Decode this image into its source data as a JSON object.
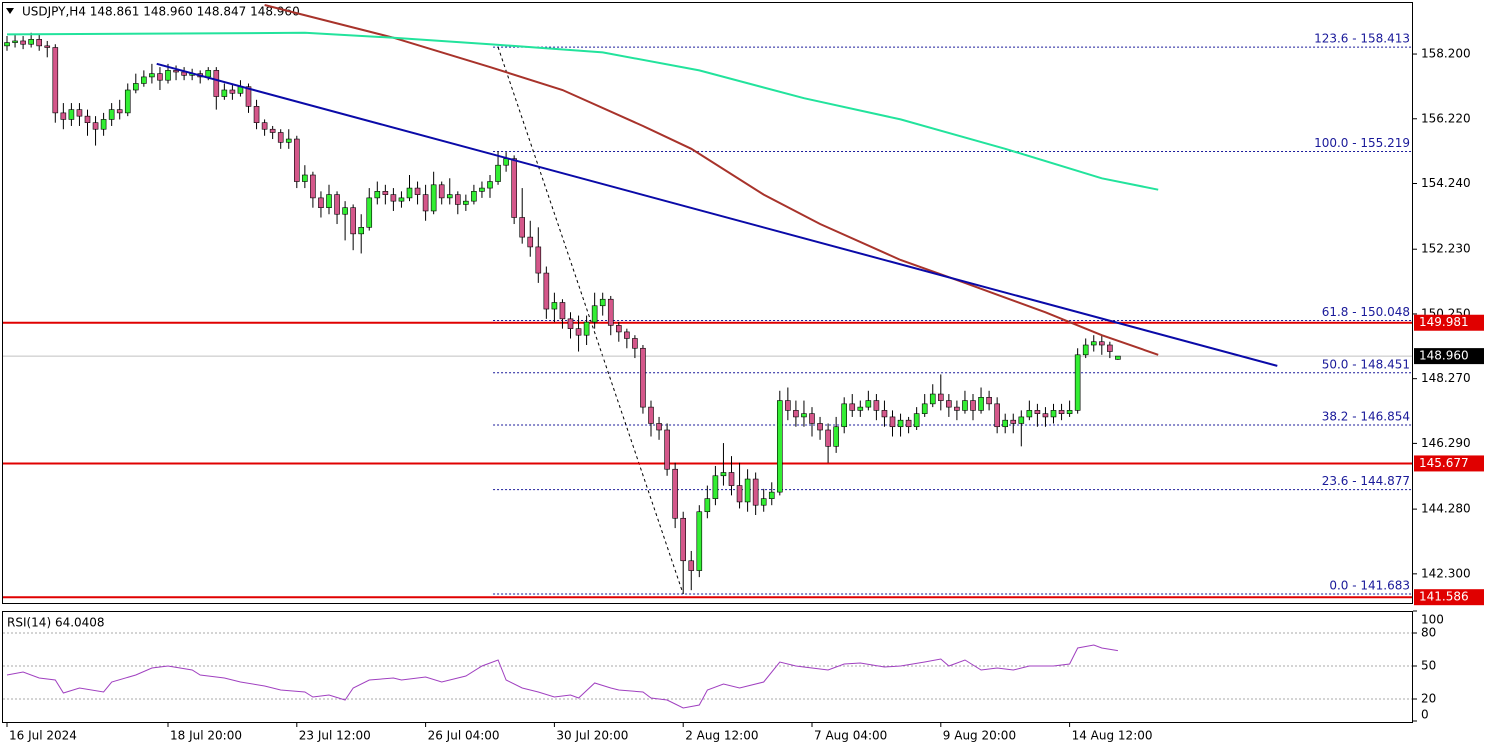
{
  "chart_data": {
    "type": "candlestick",
    "title": "USDJPY,H4 148.861 148.960 148.847 148.960",
    "ylim": [
      141.5,
      159.7
    ],
    "yticks": [
      {
        "value": 158.2,
        "label": "158.200"
      },
      {
        "value": 156.22,
        "label": "156.220"
      },
      {
        "value": 154.24,
        "label": "154.240"
      },
      {
        "value": 152.23,
        "label": "152.230"
      },
      {
        "value": 150.25,
        "label": "150.250"
      },
      {
        "value": 148.27,
        "label": "148.270"
      },
      {
        "value": 146.29,
        "label": "146.290"
      },
      {
        "value": 144.28,
        "label": "144.280"
      },
      {
        "value": 142.3,
        "label": "142.300"
      }
    ],
    "xticks": [
      {
        "value": 0,
        "label": "16 Jul 2024"
      },
      {
        "value": 20,
        "label": "18 Jul 20:00"
      },
      {
        "value": 36,
        "label": "23 Jul 12:00"
      },
      {
        "value": 52,
        "label": "26 Jul 04:00"
      },
      {
        "value": 68,
        "label": "30 Jul 20:00"
      },
      {
        "value": 84,
        "label": "2 Aug 12:00"
      },
      {
        "value": 100,
        "label": "7 Aug 04:00"
      },
      {
        "value": 116,
        "label": "9 Aug 20:00"
      },
      {
        "value": 132,
        "label": "14 Aug 12:00"
      }
    ],
    "up_color": "#33ee33",
    "down_color": "#d4578a",
    "open": [
      158.45,
      158.55,
      158.6,
      158.5,
      158.65,
      158.45,
      158.4,
      156.4,
      156.2,
      156.5,
      156.3,
      156.1,
      155.9,
      156.2,
      156.5,
      156.4,
      157.1,
      157.3,
      157.5,
      157.6,
      157.4,
      157.7,
      157.65,
      157.55,
      157.6,
      157.5,
      157.7,
      156.9,
      157.1,
      157.0,
      157.2,
      156.6,
      156.1,
      155.9,
      155.8,
      155.5,
      155.6,
      154.3,
      154.5,
      153.8,
      153.5,
      153.9,
      153.3,
      153.5,
      152.7,
      152.9,
      153.8,
      154.0,
      153.9,
      153.7,
      153.8,
      154.1,
      153.9,
      153.4,
      154.2,
      153.8,
      153.9,
      153.6,
      153.7,
      154.0,
      154.1,
      154.3,
      154.8,
      155.0,
      153.2,
      152.6,
      152.3,
      151.5,
      150.4,
      150.6,
      150.1,
      149.8,
      149.6,
      150.0,
      150.5,
      150.7,
      149.9,
      149.7,
      149.5,
      149.2,
      147.4,
      146.9,
      146.7,
      145.5,
      144.0,
      142.7,
      142.4,
      144.2,
      144.6,
      145.3,
      145.4,
      145.0,
      144.5,
      145.2,
      144.4,
      144.6,
      144.8,
      147.6,
      147.3,
      147.1,
      147.2,
      146.9,
      146.7,
      146.2,
      146.8,
      147.5,
      147.3,
      147.4,
      147.6,
      147.3,
      147.1,
      146.8,
      147.0,
      146.8,
      147.2,
      147.5,
      147.8,
      147.6,
      147.4,
      147.3,
      147.6,
      147.3,
      147.7,
      147.5,
      146.8,
      147.0,
      146.9,
      147.1,
      147.3,
      147.2,
      147.1,
      147.3,
      147.2,
      147.3,
      149.0,
      149.3,
      149.4,
      149.3,
      148.861
    ],
    "high": [
      158.75,
      158.8,
      158.75,
      158.85,
      158.8,
      158.6,
      158.5,
      156.7,
      156.7,
      156.7,
      156.5,
      156.3,
      156.4,
      156.7,
      156.8,
      157.3,
      157.6,
      157.7,
      157.9,
      157.8,
      157.9,
      157.85,
      157.8,
      157.75,
      157.7,
      157.8,
      157.8,
      157.3,
      157.3,
      157.4,
      157.3,
      156.8,
      156.2,
      156.0,
      155.9,
      155.9,
      155.7,
      154.8,
      154.6,
      154.0,
      154.2,
      154.0,
      153.7,
      153.6,
      153.3,
      154.1,
      154.3,
      154.2,
      154.1,
      154.0,
      154.5,
      154.3,
      154.2,
      154.6,
      154.3,
      154.4,
      154.0,
      153.9,
      154.2,
      154.3,
      154.5,
      155.219,
      155.2,
      155.1,
      154.1,
      153.1,
      152.9,
      151.7,
      150.9,
      150.7,
      150.3,
      150.2,
      150.2,
      150.9,
      150.9,
      150.8,
      150.0,
      149.8,
      149.6,
      149.3,
      147.6,
      147.1,
      146.9,
      145.7,
      144.2,
      143.0,
      144.4,
      145.0,
      145.6,
      146.3,
      145.9,
      145.7,
      145.5,
      145.4,
      144.9,
      145.1,
      147.9,
      148.0,
      147.6,
      147.6,
      147.4,
      147.1,
      146.9,
      147.1,
      147.7,
      147.8,
      147.6,
      147.9,
      147.8,
      147.6,
      147.3,
      147.2,
      147.1,
      147.4,
      147.8,
      148.1,
      148.4,
      147.8,
      147.6,
      147.9,
      147.8,
      148.0,
      147.9,
      147.7,
      147.2,
      147.2,
      147.3,
      147.6,
      147.5,
      147.4,
      147.5,
      147.5,
      147.6,
      149.2,
      149.5,
      149.6,
      149.6,
      149.4,
      148.96
    ],
    "low": [
      158.3,
      158.4,
      158.35,
      158.4,
      158.3,
      158.1,
      156.1,
      155.9,
      156.0,
      156.0,
      155.7,
      155.4,
      155.7,
      156.0,
      156.2,
      156.3,
      157.0,
      157.2,
      157.3,
      157.1,
      157.3,
      157.4,
      157.4,
      157.4,
      157.3,
      157.4,
      156.5,
      156.8,
      156.8,
      156.9,
      156.4,
      155.9,
      155.7,
      155.6,
      155.3,
      155.3,
      154.1,
      154.1,
      153.5,
      153.2,
      153.3,
      153.0,
      152.5,
      152.2,
      152.1,
      152.8,
      153.6,
      153.6,
      153.4,
      153.5,
      153.7,
      153.6,
      153.1,
      153.3,
      153.6,
      153.6,
      153.3,
      153.4,
      153.6,
      153.8,
      153.8,
      154.2,
      154.6,
      153.0,
      152.4,
      152.0,
      151.2,
      150.1,
      150.0,
      149.8,
      149.5,
      149.1,
      149.3,
      149.8,
      150.2,
      149.6,
      149.4,
      149.2,
      148.9,
      147.2,
      146.5,
      146.4,
      145.3,
      143.7,
      141.683,
      141.8,
      142.2,
      144.0,
      144.4,
      145.0,
      144.7,
      144.3,
      144.2,
      144.1,
      144.2,
      144.4,
      144.7,
      147.0,
      146.8,
      146.8,
      146.5,
      146.4,
      145.7,
      146.0,
      146.6,
      147.1,
      147.1,
      147.3,
      147.0,
      146.8,
      146.5,
      146.5,
      146.6,
      146.7,
      147.1,
      147.4,
      147.3,
      147.1,
      147.0,
      147.2,
      147.0,
      147.2,
      147.3,
      146.6,
      146.6,
      146.6,
      146.2,
      147.0,
      146.8,
      146.8,
      146.9,
      147.0,
      147.1,
      147.2,
      148.9,
      149.1,
      149.0,
      148.9,
      148.847
    ],
    "close": [
      158.55,
      158.6,
      158.5,
      158.65,
      158.45,
      158.4,
      156.4,
      156.2,
      156.5,
      156.3,
      156.1,
      155.9,
      156.2,
      156.5,
      156.4,
      157.1,
      157.3,
      157.5,
      157.6,
      157.4,
      157.7,
      157.65,
      157.55,
      157.6,
      157.5,
      157.7,
      156.9,
      157.1,
      157.0,
      157.2,
      156.6,
      156.1,
      155.9,
      155.8,
      155.5,
      155.6,
      154.3,
      154.5,
      153.8,
      153.5,
      153.9,
      153.3,
      153.5,
      152.7,
      152.9,
      153.8,
      154.0,
      153.9,
      153.7,
      153.8,
      154.1,
      153.9,
      153.4,
      154.2,
      153.8,
      153.9,
      153.6,
      153.7,
      154.0,
      154.1,
      154.3,
      154.8,
      155.0,
      153.2,
      152.6,
      152.3,
      151.5,
      150.4,
      150.6,
      150.1,
      149.8,
      149.6,
      150.0,
      150.5,
      150.7,
      149.9,
      149.7,
      149.5,
      149.2,
      147.4,
      146.9,
      146.7,
      145.5,
      144.0,
      142.7,
      142.4,
      144.2,
      144.6,
      145.3,
      145.4,
      145.0,
      144.5,
      145.2,
      144.4,
      144.6,
      144.8,
      147.6,
      147.3,
      147.1,
      147.2,
      146.9,
      146.7,
      146.2,
      146.8,
      147.5,
      147.3,
      147.4,
      147.6,
      147.3,
      147.1,
      146.8,
      147.0,
      146.8,
      147.2,
      147.5,
      147.8,
      147.6,
      147.4,
      147.3,
      147.6,
      147.3,
      147.7,
      147.5,
      146.8,
      147.0,
      146.9,
      147.1,
      147.3,
      147.2,
      147.1,
      147.3,
      147.2,
      147.3,
      149.0,
      149.3,
      149.4,
      149.3,
      149.1,
      148.96
    ],
    "lines": [
      {
        "color": "#a8332b",
        "x": [
          32,
          48,
          60,
          69,
          79,
          85,
          94,
          101,
          111,
          119,
          129,
          136,
          143
        ],
        "values": [
          159.7,
          158.7,
          157.8,
          157.1,
          156.0,
          155.3,
          153.9,
          153.0,
          151.9,
          151.2,
          150.3,
          149.6,
          149.0
        ]
      },
      {
        "color": "#22e39c",
        "x": [
          0,
          37,
          48,
          60,
          74,
          86,
          99,
          111,
          124,
          136,
          143
        ],
        "values": [
          158.8,
          158.85,
          158.7,
          158.5,
          158.25,
          157.7,
          156.85,
          156.2,
          155.3,
          154.4,
          154.05
        ]
      },
      {
        "color": "#0a0aa8",
        "x": [
          18.6,
          157.8
        ],
        "values": [
          157.9,
          148.66
        ]
      }
    ],
    "fib_start": 61,
    "fib_end": 84,
    "fib_levels": [
      {
        "value": 158.413,
        "label": "123.6 - 158.413"
      },
      {
        "value": 155.219,
        "label": "100.0 - 155.219"
      },
      {
        "value": 150.048,
        "label": "61.8 - 150.048"
      },
      {
        "value": 148.451,
        "label": "50.0 - 148.451"
      },
      {
        "value": 146.854,
        "label": "38.2 - 146.854"
      },
      {
        "value": 144.877,
        "label": "23.6 - 144.877"
      },
      {
        "value": 141.683,
        "label": "0.0 - 141.683"
      }
    ],
    "levels_color": "#e00000",
    "levels": [
      {
        "value": 149.981,
        "label": "149.981"
      },
      {
        "value": 145.677,
        "label": "145.677"
      },
      {
        "value": 141.586,
        "label": "141.586"
      }
    ],
    "current": {
      "value": 148.96,
      "label": "148.960"
    },
    "rsi": {
      "title": "RSI(14) 64.0408",
      "color": "#a040c0",
      "ylim": [
        0,
        100
      ],
      "yticks": [
        100,
        80,
        50,
        20,
        0
      ],
      "levels": [
        80,
        50,
        20
      ],
      "x": [
        0,
        2,
        4,
        6,
        7,
        9,
        12,
        13,
        16,
        18,
        20,
        23,
        24,
        27,
        29,
        32,
        34,
        37,
        38,
        40,
        42,
        43,
        45,
        48,
        49,
        52,
        54,
        57,
        59,
        61,
        62,
        64,
        66,
        68,
        70,
        71,
        73,
        75,
        76,
        79,
        80,
        82,
        83,
        84,
        86,
        87,
        89,
        91,
        94,
        96,
        98,
        100,
        102,
        104,
        106,
        109,
        111,
        114,
        116,
        117,
        119,
        121,
        123,
        125,
        127,
        130,
        132,
        133,
        135,
        136,
        138
      ],
      "values": [
        41.8,
        44.5,
        39.1,
        37.3,
        25.5,
        30,
        26.4,
        35.5,
        41.8,
        48.2,
        50,
        46.4,
        41.8,
        39.1,
        35.5,
        31.8,
        28.2,
        26.4,
        21.8,
        23.6,
        19.1,
        30,
        37.3,
        39.1,
        37.3,
        40,
        35.5,
        40.9,
        50,
        55.5,
        37.3,
        30,
        26.4,
        21.8,
        23.6,
        20.9,
        34.5,
        30,
        28.2,
        26.4,
        20.9,
        19.1,
        15.5,
        11.8,
        14.5,
        28.2,
        33.6,
        30,
        35.5,
        53.6,
        50,
        48.2,
        46.4,
        51.8,
        52.7,
        49.1,
        50,
        53.6,
        56.4,
        50,
        55.5,
        46.4,
        48.2,
        46.4,
        50,
        50,
        51.8,
        66.4,
        69.1,
        66.4,
        64.0408
      ]
    }
  }
}
